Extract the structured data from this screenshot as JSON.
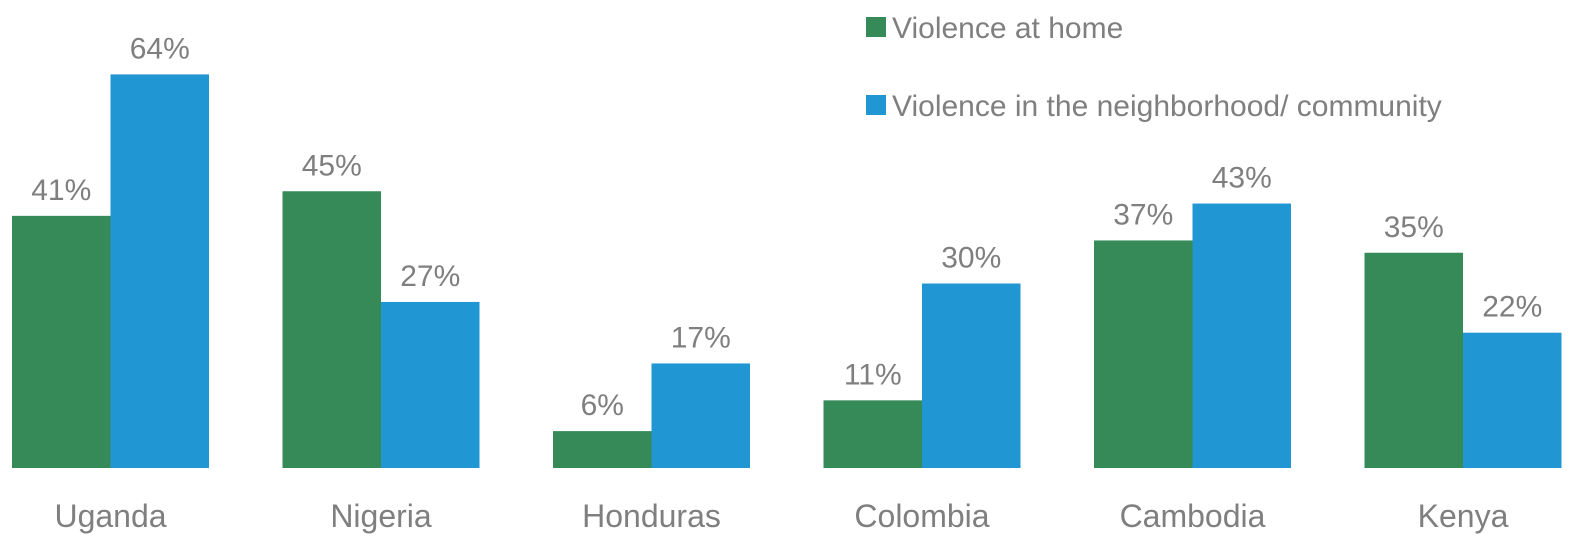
{
  "chart_data": {
    "type": "bar",
    "categories": [
      "Uganda",
      "Nigeria",
      "Honduras",
      "Colombia",
      "Cambodia",
      "Kenya"
    ],
    "series": [
      {
        "name": "Violence at home",
        "color": "#368a57",
        "values": [
          41,
          45,
          6,
          11,
          37,
          35
        ]
      },
      {
        "name": "Violence in the neighborhood/ community",
        "color": "#2096d3",
        "values": [
          64,
          27,
          17,
          30,
          43,
          22
        ]
      }
    ],
    "value_suffix": "%",
    "ylim": [
      0,
      70
    ],
    "grid": false,
    "legend_position": "top-right",
    "title": "",
    "xlabel": "",
    "ylabel": ""
  }
}
